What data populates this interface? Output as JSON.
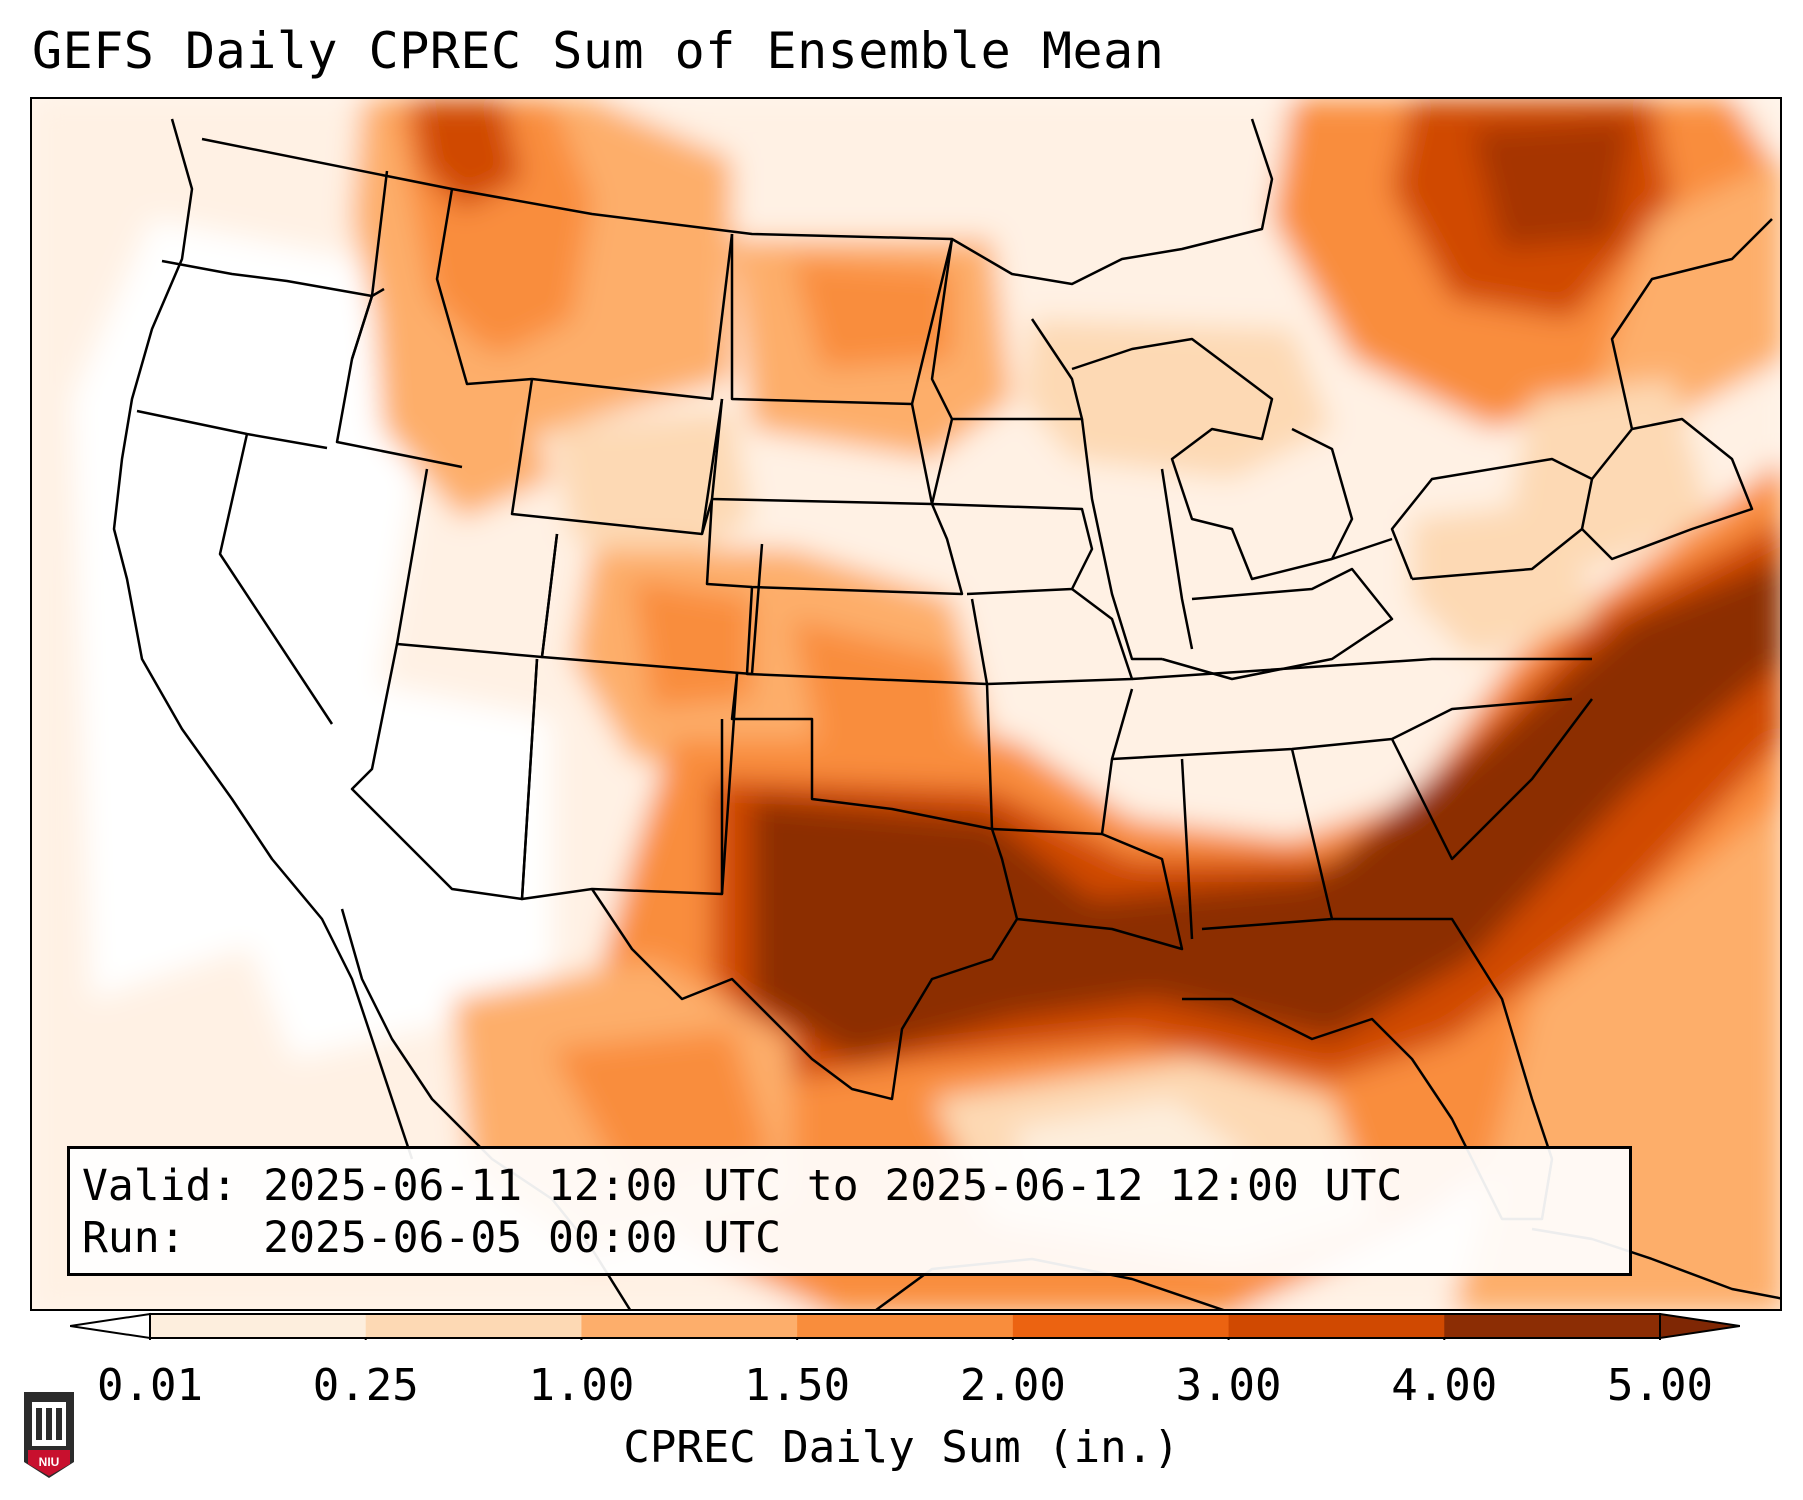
{
  "title": "GEFS Daily CPREC Sum of Ensemble Mean",
  "info": {
    "valid": "Valid: 2025-06-11 12:00 UTC to 2025-06-12 12:00 UTC",
    "run": "Run:   2025-06-05 00:00 UTC"
  },
  "colorbar": {
    "label": "CPREC Daily Sum (in.)",
    "ticks": [
      "0.01",
      "0.25",
      "1.00",
      "1.50",
      "2.00",
      "3.00",
      "4.00",
      "5.00"
    ],
    "colors": [
      "#fdeedd",
      "#fdd9b4",
      "#fdae6b",
      "#f98d3c",
      "#ec6311",
      "#d04901",
      "#8c2d04"
    ],
    "under_color": "#ffffff",
    "over_color": "#7f2704"
  },
  "map": {
    "region": "CONUS",
    "boundary_color": "#000000"
  },
  "logo": {
    "text": "NIU"
  }
}
